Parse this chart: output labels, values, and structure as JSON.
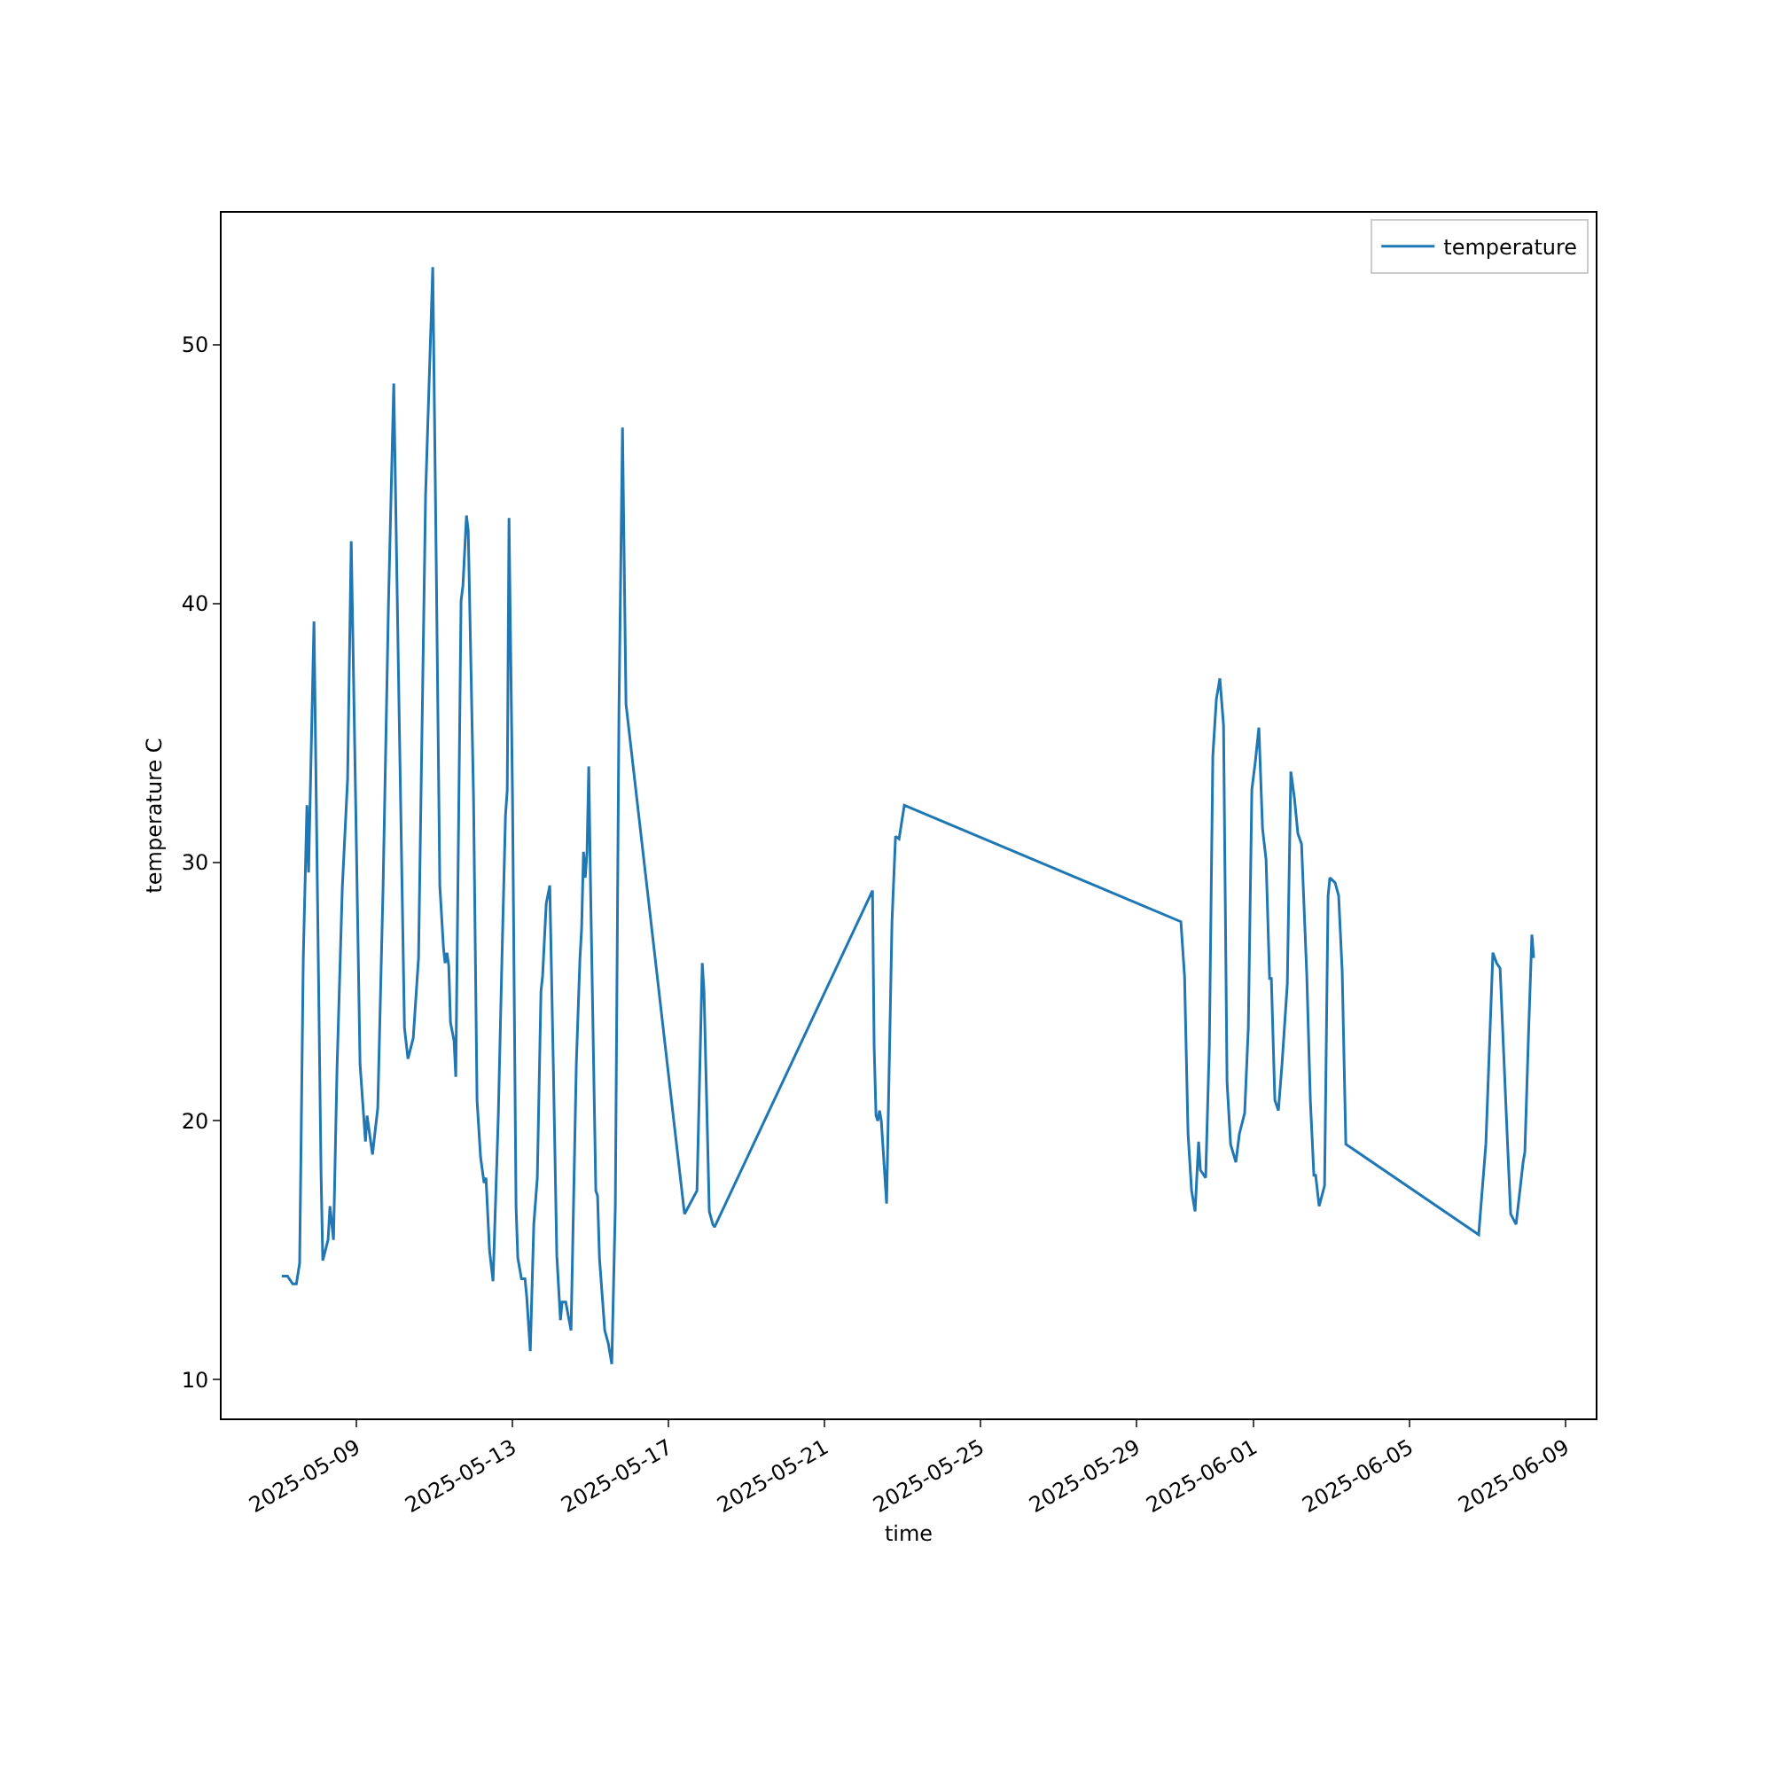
{
  "chart_data": {
    "type": "line",
    "xlabel": "time",
    "ylabel": "temperature C",
    "legend": "top right",
    "grid": false,
    "xlim": [
      "2025-05-05T13:00",
      "2025-06-09T18:30"
    ],
    "xticks": [
      "2025-05-09",
      "2025-05-13",
      "2025-05-17",
      "2025-05-21",
      "2025-05-25",
      "2025-05-29",
      "2025-06-01",
      "2025-06-05",
      "2025-06-09"
    ],
    "ylim": [
      8.5,
      55.1
    ],
    "yticks": [
      10,
      20,
      30,
      40,
      50
    ],
    "x": [
      "2025-05-07T02:00",
      "2025-05-07T05:30",
      "2025-05-07T08:45",
      "2025-05-07T11:00",
      "2025-05-07T13:00",
      "2025-05-07T15:15",
      "2025-05-07T17:30",
      "2025-05-07T18:30",
      "2025-05-07T21:50",
      "2025-05-08T02:10",
      "2025-05-08T03:15",
      "2025-05-08T06:30",
      "2025-05-08T07:40",
      "2025-05-08T09:50",
      "2025-05-08T12:00",
      "2025-05-08T15:15",
      "2025-05-08T18:30",
      "2025-05-08T20:45",
      "2025-05-09T00:00",
      "2025-05-09T02:10",
      "2025-05-09T05:30",
      "2025-05-09T06:30",
      "2025-05-09T09:50",
      "2025-05-09T13:05",
      "2025-05-09T16:20",
      "2025-05-09T19:40",
      "2025-05-09T22:55",
      "2025-05-10T02:10",
      "2025-05-10T05:30",
      "2025-05-10T07:40",
      "2025-05-10T10:55",
      "2025-05-10T14:10",
      "2025-05-10T18:30",
      "2025-05-10T22:55",
      "2025-05-11T01:05",
      "2025-05-11T03:15",
      "2025-05-11T05:30",
      "2025-05-11T06:30",
      "2025-05-11T07:40",
      "2025-05-11T08:45",
      "2025-05-11T09:50",
      "2025-05-11T12:00",
      "2025-05-11T13:05",
      "2025-05-11T16:20",
      "2025-05-11T17:30",
      "2025-05-11T19:40",
      "2025-05-11T20:45",
      "2025-05-12T00:00",
      "2025-05-12T02:10",
      "2025-05-12T04:20",
      "2025-05-12T06:30",
      "2025-05-12T07:40",
      "2025-05-12T09:50",
      "2025-05-12T12:00",
      "2025-05-12T15:15",
      "2025-05-12T17:30",
      "2025-05-12T19:40",
      "2025-05-12T20:45",
      "2025-05-12T21:50",
      "2025-05-13T00:00",
      "2025-05-13T02:10",
      "2025-05-13T03:15",
      "2025-05-13T05:30",
      "2025-05-13T07:40",
      "2025-05-13T08:45",
      "2025-05-13T10:55",
      "2025-05-13T13:05",
      "2025-05-13T15:15",
      "2025-05-13T17:30",
      "2025-05-13T18:30",
      "2025-05-13T20:45",
      "2025-05-13T22:55",
      "2025-05-14T01:05",
      "2025-05-14T03:15",
      "2025-05-14T05:30",
      "2025-05-14T06:30",
      "2025-05-14T08:45",
      "2025-05-14T12:00",
      "2025-05-14T15:15",
      "2025-05-14T17:30",
      "2025-05-14T18:30",
      "2025-05-14T19:40",
      "2025-05-14T20:45",
      "2025-05-14T21:50",
      "2025-05-14T22:55",
      "2025-05-15T00:00",
      "2025-05-15T03:15",
      "2025-05-15T04:20",
      "2025-05-15T05:30",
      "2025-05-15T08:45",
      "2025-05-15T10:55",
      "2025-05-15T13:05",
      "2025-05-15T15:15",
      "2025-05-15T17:30",
      "2025-05-15T19:40",
      "2025-05-15T21:50",
      "2025-05-17T09:50",
      "2025-05-17T17:30",
      "2025-05-17T20:45",
      "2025-05-17T21:50",
      "2025-05-18T01:05",
      "2025-05-18T03:15",
      "2025-05-18T04:20",
      "2025-05-22T05:30",
      "2025-05-22T06:30",
      "2025-05-22T07:40",
      "2025-05-22T08:45",
      "2025-05-22T09:50",
      "2025-05-22T10:55",
      "2025-05-22T14:10",
      "2025-05-22T17:30",
      "2025-05-22T19:40",
      "2025-05-22T21:50",
      "2025-05-23T01:05",
      "2025-05-30T03:15",
      "2025-05-30T05:30",
      "2025-05-30T07:40",
      "2025-05-30T09:50",
      "2025-05-30T12:00",
      "2025-05-30T14:10",
      "2025-05-30T15:15",
      "2025-05-30T18:30",
      "2025-05-30T20:45",
      "2025-05-30T22:55",
      "2025-05-31T01:05",
      "2025-05-31T03:15",
      "2025-05-31T05:30",
      "2025-05-31T07:40",
      "2025-05-31T09:50",
      "2025-05-31T13:05",
      "2025-05-31T15:15",
      "2025-05-31T18:30",
      "2025-05-31T20:45",
      "2025-05-31T22:55",
      "2025-06-01T01:05",
      "2025-06-01T03:15",
      "2025-06-01T05:30",
      "2025-06-01T07:40",
      "2025-06-01T09:50",
      "2025-06-01T10:55",
      "2025-06-01T13:05",
      "2025-06-01T15:15",
      "2025-06-01T17:30",
      "2025-06-01T20:45",
      "2025-06-01T22:55",
      "2025-06-02T01:05",
      "2025-06-02T03:15",
      "2025-06-02T05:30",
      "2025-06-02T08:45",
      "2025-06-02T10:55",
      "2025-06-02T13:05",
      "2025-06-02T14:10",
      "2025-06-02T16:20",
      "2025-06-02T19:40",
      "2025-06-02T21:50",
      "2025-06-02T22:55",
      "2025-06-03T02:10",
      "2025-06-03T04:20",
      "2025-06-03T06:30",
      "2025-06-03T08:45",
      "2025-06-06T18:30",
      "2025-06-06T22:55",
      "2025-06-07T03:15",
      "2025-06-07T05:30",
      "2025-06-07T07:40",
      "2025-06-07T12:00",
      "2025-06-07T14:10",
      "2025-06-07T17:30",
      "2025-06-07T21:50",
      "2025-06-07T22:55",
      "2025-06-08T01:05",
      "2025-06-08T03:15",
      "2025-06-08T04:20"
    ],
    "series": [
      {
        "name": "temperature",
        "color": "#1f77b4",
        "values": [
          14.0,
          14.0,
          13.7,
          13.7,
          14.5,
          26.3,
          32.2,
          29.6,
          39.3,
          18.0,
          14.6,
          15.4,
          16.7,
          15.4,
          22.0,
          29.0,
          33.2,
          42.4,
          30.4,
          22.2,
          19.2,
          20.2,
          18.7,
          20.5,
          29.0,
          40.0,
          48.5,
          36.0,
          23.6,
          22.4,
          23.2,
          26.3,
          44.2,
          53.0,
          41.4,
          29.1,
          26.7,
          26.1,
          26.5,
          26.0,
          23.8,
          23.1,
          21.7,
          40.1,
          40.7,
          43.4,
          42.8,
          32.5,
          20.8,
          18.6,
          17.6,
          17.8,
          15.0,
          13.8,
          20.2,
          26.3,
          31.8,
          32.8,
          43.3,
          32.5,
          16.7,
          14.7,
          13.9,
          13.9,
          13.2,
          11.1,
          16.0,
          17.8,
          25.0,
          25.6,
          28.4,
          29.1,
          22.2,
          14.8,
          12.3,
          13.0,
          13.0,
          11.9,
          22.2,
          26.3,
          27.4,
          30.4,
          29.4,
          30.4,
          33.7,
          29.1,
          17.3,
          17.1,
          14.7,
          11.9,
          11.4,
          10.6,
          16.7,
          35.9,
          46.8,
          36.1,
          16.4,
          17.3,
          26.1,
          25.0,
          16.5,
          16.0,
          15.9,
          28.9,
          22.9,
          20.2,
          20.0,
          20.4,
          20.0,
          16.8,
          27.7,
          31.0,
          30.9,
          32.2,
          27.7,
          25.6,
          19.5,
          17.3,
          16.5,
          19.2,
          18.1,
          17.8,
          22.9,
          34.1,
          36.3,
          37.1,
          35.3,
          21.5,
          19.1,
          18.4,
          19.5,
          20.3,
          23.6,
          32.8,
          33.9,
          35.2,
          31.3,
          30.1,
          25.5,
          25.5,
          20.8,
          20.4,
          22.2,
          25.3,
          33.5,
          32.5,
          31.1,
          30.7,
          25.6,
          20.8,
          17.9,
          17.9,
          16.7,
          17.5,
          28.7,
          29.4,
          29.2,
          28.7,
          25.8,
          19.1,
          15.6,
          19.1,
          26.5,
          26.1,
          25.9,
          19.5,
          16.4,
          16.0,
          18.4,
          18.8,
          23.2,
          27.2,
          26.3
        ]
      }
    ]
  }
}
